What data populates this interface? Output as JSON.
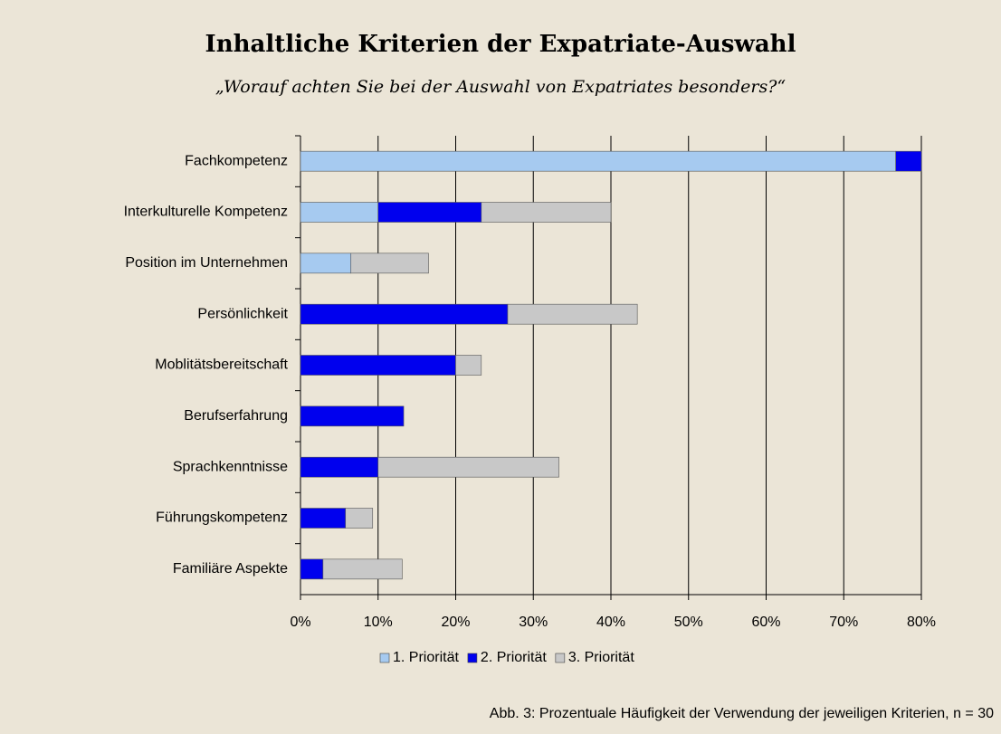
{
  "chart_data": {
    "type": "stacked_barh",
    "title": "Inhaltliche Kriterien der Expatriate-Auswahl",
    "subtitle": "„Worauf achten Sie bei der Auswahl von Expatriates besonders?“",
    "caption": "Abb. 3: Prozentuale Häufigkeit der Verwendung der jeweiligen Kriterien, n = 30",
    "categories": [
      "Fachkompetenz",
      "Interkulturelle Kompetenz",
      "Position im Unternehmen",
      "Persönlichkeit",
      "Moblitätsbereitschaft",
      "Berufserfahrung",
      "Sprachkenntnisse",
      "Führungskompetenz",
      "Familiäre Aspekte"
    ],
    "series": [
      {
        "name": "1. Priorität",
        "color": "#a6caf0",
        "values": [
          76.7,
          10,
          6.5,
          null,
          null,
          null,
          null,
          null,
          null
        ]
      },
      {
        "name": "2. Priorität",
        "color": "#0000ee",
        "values": [
          3.3,
          13.3,
          null,
          26.7,
          20,
          13.3,
          10,
          5.8,
          2.9
        ]
      },
      {
        "name": "3. Priorität",
        "color": "#c8c8c8",
        "values": [
          null,
          16.7,
          10,
          16.7,
          3.3,
          null,
          23.3,
          3.5,
          10.2
        ]
      }
    ],
    "xlim": [
      0,
      80
    ],
    "xticks": [
      {
        "value": 0,
        "label": "0%"
      },
      {
        "value": 10,
        "label": "10%"
      },
      {
        "value": 20,
        "label": "20%"
      },
      {
        "value": 30,
        "label": "30%"
      },
      {
        "value": 40,
        "label": "40%"
      },
      {
        "value": 50,
        "label": "50%"
      },
      {
        "value": 60,
        "label": "60%"
      },
      {
        "value": 70,
        "label": "70%"
      },
      {
        "value": 80,
        "label": "80%"
      }
    ],
    "grid": true,
    "legend": "bottom"
  }
}
